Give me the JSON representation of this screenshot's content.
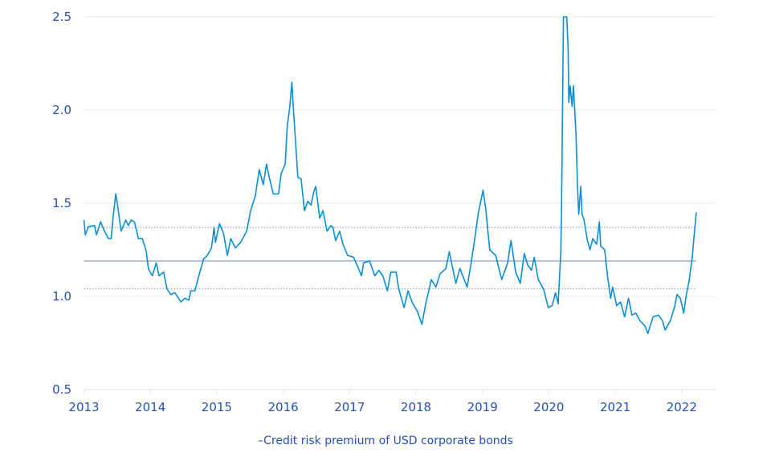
{
  "chart_data": {
    "type": "line",
    "title": "",
    "xlabel": "",
    "ylabel": "",
    "xlim": [
      2013,
      2022.5
    ],
    "ylim": [
      0.5,
      2.5
    ],
    "x_ticks": [
      "2013",
      "2014",
      "2015",
      "2016",
      "2017",
      "2018",
      "2019",
      "2020",
      "2021",
      "2022"
    ],
    "y_ticks": [
      "0.5",
      "1.0",
      "1.5",
      "2.0",
      "2.5"
    ],
    "grid": "horizontal",
    "legend_placement": "bottom",
    "colors": {
      "series": "#0a8fd6",
      "reference": "#7d93c9",
      "grid": "#e6ecf6",
      "text": "#2350b8"
    },
    "reference_lines": [
      {
        "kind": "mean",
        "style": "solid",
        "value": 1.19
      },
      {
        "kind": "upper",
        "style": "dotted",
        "value": 1.37
      },
      {
        "kind": "lower",
        "style": "dotted",
        "value": 1.04
      }
    ],
    "series": [
      {
        "name": "Credit risk premium of USD corporate bonds",
        "legend_label": "–Credit risk premium of USD corporate bonds",
        "points": [
          [
            2013.0,
            1.41
          ],
          [
            2013.02,
            1.33
          ],
          [
            2013.07,
            1.375
          ],
          [
            2013.16,
            1.38
          ],
          [
            2013.19,
            1.33
          ],
          [
            2013.25,
            1.4
          ],
          [
            2013.31,
            1.35
          ],
          [
            2013.37,
            1.31
          ],
          [
            2013.41,
            1.31
          ],
          [
            2013.44,
            1.43
          ],
          [
            2013.48,
            1.55
          ],
          [
            2013.51,
            1.48
          ],
          [
            2013.56,
            1.35
          ],
          [
            2013.63,
            1.41
          ],
          [
            2013.67,
            1.38
          ],
          [
            2013.71,
            1.41
          ],
          [
            2013.76,
            1.4
          ],
          [
            2013.82,
            1.31
          ],
          [
            2013.88,
            1.31
          ],
          [
            2013.94,
            1.24
          ],
          [
            2013.97,
            1.15
          ],
          [
            2014.03,
            1.11
          ],
          [
            2014.09,
            1.18
          ],
          [
            2014.13,
            1.11
          ],
          [
            2014.2,
            1.13
          ],
          [
            2014.25,
            1.04
          ],
          [
            2014.31,
            1.01
          ],
          [
            2014.37,
            1.02
          ],
          [
            2014.46,
            0.97
          ],
          [
            2014.52,
            0.99
          ],
          [
            2014.58,
            0.98
          ],
          [
            2014.61,
            1.03
          ],
          [
            2014.67,
            1.03
          ],
          [
            2014.73,
            1.11
          ],
          [
            2014.8,
            1.2
          ],
          [
            2014.86,
            1.22
          ],
          [
            2014.92,
            1.26
          ],
          [
            2014.96,
            1.37
          ],
          [
            2014.98,
            1.29
          ],
          [
            2015.04,
            1.39
          ],
          [
            2015.1,
            1.34
          ],
          [
            2015.16,
            1.22
          ],
          [
            2015.21,
            1.31
          ],
          [
            2015.28,
            1.26
          ],
          [
            2015.36,
            1.29
          ],
          [
            2015.45,
            1.35
          ],
          [
            2015.51,
            1.46
          ],
          [
            2015.58,
            1.54
          ],
          [
            2015.64,
            1.68
          ],
          [
            2015.7,
            1.6
          ],
          [
            2015.75,
            1.71
          ],
          [
            2015.79,
            1.64
          ],
          [
            2015.85,
            1.55
          ],
          [
            2015.93,
            1.55
          ],
          [
            2015.97,
            1.66
          ],
          [
            2016.03,
            1.71
          ],
          [
            2016.06,
            1.91
          ],
          [
            2016.1,
            2.02
          ],
          [
            2016.13,
            2.15
          ],
          [
            2016.15,
            2.03
          ],
          [
            2016.19,
            1.81
          ],
          [
            2016.22,
            1.64
          ],
          [
            2016.27,
            1.63
          ],
          [
            2016.32,
            1.46
          ],
          [
            2016.37,
            1.51
          ],
          [
            2016.42,
            1.49
          ],
          [
            2016.46,
            1.56
          ],
          [
            2016.49,
            1.59
          ],
          [
            2016.55,
            1.42
          ],
          [
            2016.6,
            1.46
          ],
          [
            2016.66,
            1.35
          ],
          [
            2016.72,
            1.38
          ],
          [
            2016.75,
            1.37
          ],
          [
            2016.79,
            1.3
          ],
          [
            2016.85,
            1.35
          ],
          [
            2016.9,
            1.28
          ],
          [
            2016.97,
            1.22
          ],
          [
            2017.06,
            1.21
          ],
          [
            2017.18,
            1.11
          ],
          [
            2017.21,
            1.18
          ],
          [
            2017.3,
            1.19
          ],
          [
            2017.38,
            1.11
          ],
          [
            2017.44,
            1.14
          ],
          [
            2017.5,
            1.11
          ],
          [
            2017.57,
            1.03
          ],
          [
            2017.62,
            1.13
          ],
          [
            2017.7,
            1.13
          ],
          [
            2017.74,
            1.04
          ],
          [
            2017.82,
            0.94
          ],
          [
            2017.88,
            1.03
          ],
          [
            2017.94,
            0.97
          ],
          [
            2018.02,
            0.92
          ],
          [
            2018.09,
            0.85
          ],
          [
            2018.14,
            0.95
          ],
          [
            2018.23,
            1.09
          ],
          [
            2018.3,
            1.05
          ],
          [
            2018.36,
            1.12
          ],
          [
            2018.45,
            1.15
          ],
          [
            2018.5,
            1.24
          ],
          [
            2018.54,
            1.17
          ],
          [
            2018.6,
            1.07
          ],
          [
            2018.66,
            1.15
          ],
          [
            2018.77,
            1.05
          ],
          [
            2018.83,
            1.18
          ],
          [
            2018.88,
            1.3
          ],
          [
            2018.94,
            1.45
          ],
          [
            2019.01,
            1.57
          ],
          [
            2019.05,
            1.47
          ],
          [
            2019.11,
            1.25
          ],
          [
            2019.2,
            1.22
          ],
          [
            2019.29,
            1.09
          ],
          [
            2019.38,
            1.18
          ],
          [
            2019.43,
            1.3
          ],
          [
            2019.5,
            1.13
          ],
          [
            2019.57,
            1.07
          ],
          [
            2019.63,
            1.23
          ],
          [
            2019.68,
            1.17
          ],
          [
            2019.74,
            1.14
          ],
          [
            2019.78,
            1.21
          ],
          [
            2019.84,
            1.09
          ],
          [
            2019.92,
            1.04
          ],
          [
            2019.99,
            0.94
          ],
          [
            2020.05,
            0.95
          ],
          [
            2020.1,
            1.02
          ],
          [
            2020.14,
            0.96
          ],
          [
            2020.18,
            1.24
          ],
          [
            2020.19,
            1.44
          ],
          [
            2020.21,
            2.16
          ],
          [
            2020.22,
            2.5
          ],
          [
            2020.27,
            2.5
          ],
          [
            2020.29,
            2.33
          ],
          [
            2020.3,
            2.04
          ],
          [
            2020.32,
            2.13
          ],
          [
            2020.35,
            2.02
          ],
          [
            2020.37,
            2.13
          ],
          [
            2020.41,
            1.86
          ],
          [
            2020.43,
            1.6
          ],
          [
            2020.45,
            1.44
          ],
          [
            2020.48,
            1.59
          ],
          [
            2020.5,
            1.44
          ],
          [
            2020.53,
            1.41
          ],
          [
            2020.58,
            1.3
          ],
          [
            2020.62,
            1.25
          ],
          [
            2020.66,
            1.31
          ],
          [
            2020.72,
            1.28
          ],
          [
            2020.76,
            1.4
          ],
          [
            2020.78,
            1.27
          ],
          [
            2020.84,
            1.25
          ],
          [
            2020.89,
            1.09
          ],
          [
            2020.93,
            0.99
          ],
          [
            2020.96,
            1.05
          ],
          [
            2021.02,
            0.95
          ],
          [
            2021.08,
            0.97
          ],
          [
            2021.14,
            0.89
          ],
          [
            2021.2,
            0.99
          ],
          [
            2021.25,
            0.9
          ],
          [
            2021.31,
            0.91
          ],
          [
            2021.37,
            0.87
          ],
          [
            2021.45,
            0.84
          ],
          [
            2021.49,
            0.8
          ],
          [
            2021.57,
            0.89
          ],
          [
            2021.65,
            0.9
          ],
          [
            2021.71,
            0.87
          ],
          [
            2021.75,
            0.82
          ],
          [
            2021.83,
            0.87
          ],
          [
            2021.89,
            0.94
          ],
          [
            2021.93,
            1.01
          ],
          [
            2021.98,
            0.99
          ],
          [
            2022.03,
            0.91
          ],
          [
            2022.07,
            1.01
          ],
          [
            2022.11,
            1.08
          ],
          [
            2022.16,
            1.21
          ],
          [
            2022.18,
            1.3
          ],
          [
            2022.22,
            1.45
          ]
        ]
      }
    ]
  }
}
